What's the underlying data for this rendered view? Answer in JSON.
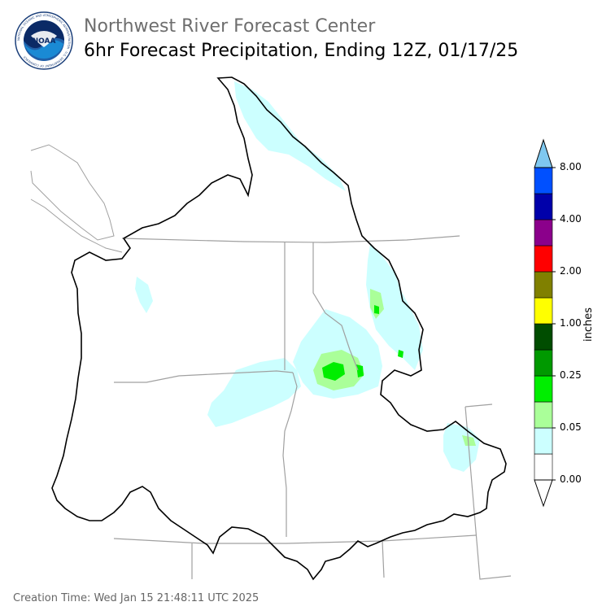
{
  "header": {
    "title": "Northwest River Forecast Center",
    "subtitle": "6hr Forecast Precipitation, Ending 12Z, 01/17/25"
  },
  "logo": {
    "name": "noaa-logo",
    "center_text": "NOAA",
    "ring_text": "NATIONAL OCEANIC AND ATMOSPHERIC ADMINISTRATION · U.S. DEPARTMENT OF COMMERCE"
  },
  "legend": {
    "unit": "inches",
    "tick_labels": [
      "0.00",
      "0.05",
      "0.25",
      "1.00",
      "2.00",
      "4.00",
      "8.00"
    ],
    "bins": [
      {
        "color": "#ffffff"
      },
      {
        "color": "#ccffff"
      },
      {
        "color": "#aaff99"
      },
      {
        "color": "#00ee00"
      },
      {
        "color": "#009900"
      },
      {
        "color": "#004d00"
      },
      {
        "color": "#ffff00"
      },
      {
        "color": "#808000"
      },
      {
        "color": "#ff0000"
      },
      {
        "color": "#8b008b"
      },
      {
        "color": "#0000aa"
      },
      {
        "color": "#0050ff"
      }
    ],
    "under_color": "#ffffff",
    "over_color": "#7fc8f0"
  },
  "map": {
    "colors": {
      "basin_outline": "#000000",
      "state_lines": "#a0a0a0",
      "coast_lines": "#a0a0a0",
      "light_precip": "#ccffff",
      "moderate_precip": "#aaff99",
      "heavy_precip": "#00ee00",
      "heavier_precip": "#009900"
    }
  },
  "footer": {
    "creation_time": "Creation Time: Wed Jan 15 21:48:11 UTC 2025"
  }
}
